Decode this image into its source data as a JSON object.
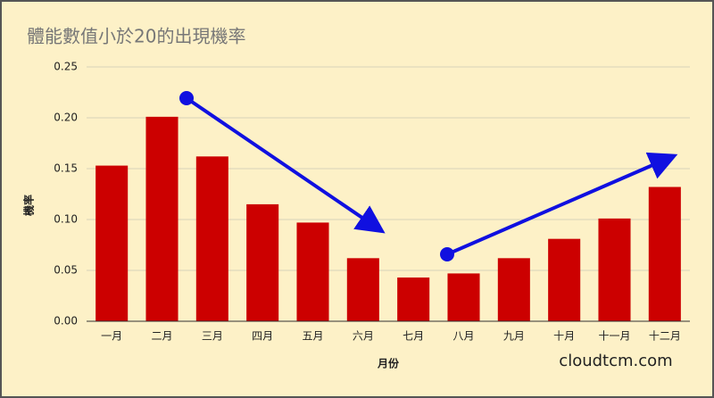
{
  "chart_data": {
    "type": "bar",
    "title": "體能數值小於20的出現機率",
    "categories": [
      "一月",
      "二月",
      "三月",
      "四月",
      "五月",
      "六月",
      "七月",
      "八月",
      "九月",
      "十月",
      "十一月",
      "十二月"
    ],
    "values": [
      0.153,
      0.201,
      0.162,
      0.115,
      0.097,
      0.062,
      0.043,
      0.047,
      0.062,
      0.081,
      0.101,
      0.132
    ],
    "color": "#cc0000",
    "xlabel": "月份",
    "ylabel": "機率",
    "ylim": [
      0,
      0.25
    ],
    "yticks": [
      {
        "value": 0,
        "label": "0.00"
      },
      0.05,
      {
        "value": 0.1,
        "label": "0.10"
      },
      0.15,
      {
        "value": 0.2,
        "label": "0.20"
      },
      0.25
    ],
    "grid": true,
    "watermark": "cloudtcm.com"
  }
}
